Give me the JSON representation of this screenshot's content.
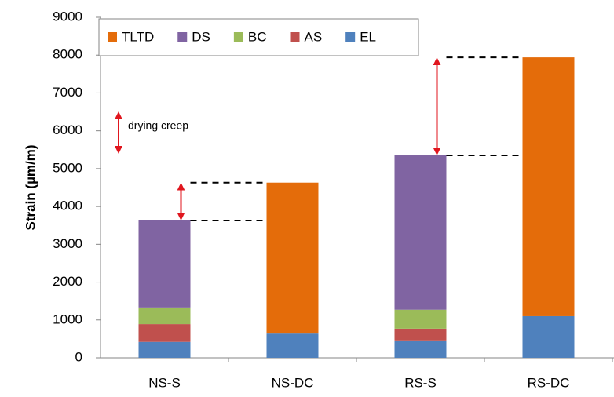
{
  "chart_data": {
    "type": "stacked-bar",
    "y_label": "Strain (µm/m)",
    "categories": [
      "NS-S",
      "NS-DC",
      "RS-S",
      "RS-DC"
    ],
    "series": [
      {
        "name": "EL",
        "color": "#4f81bd",
        "values": [
          420,
          640,
          460,
          1100
        ]
      },
      {
        "name": "AS",
        "color": "#c0504d",
        "values": [
          470,
          null,
          310,
          null
        ]
      },
      {
        "name": "BC",
        "color": "#9bbb59",
        "values": [
          440,
          null,
          500,
          null
        ]
      },
      {
        "name": "DS",
        "color": "#8064a2",
        "values": [
          2300,
          null,
          4080,
          null
        ]
      },
      {
        "name": "TLTD",
        "color": "#e46c0a",
        "values": [
          null,
          3990,
          null,
          6840
        ]
      }
    ],
    "ylim": [
      0,
      9000
    ],
    "yticks": [
      0,
      1000,
      2000,
      3000,
      4000,
      5000,
      6000,
      7000,
      8000,
      9000
    ],
    "annotation": "drying creep"
  }
}
